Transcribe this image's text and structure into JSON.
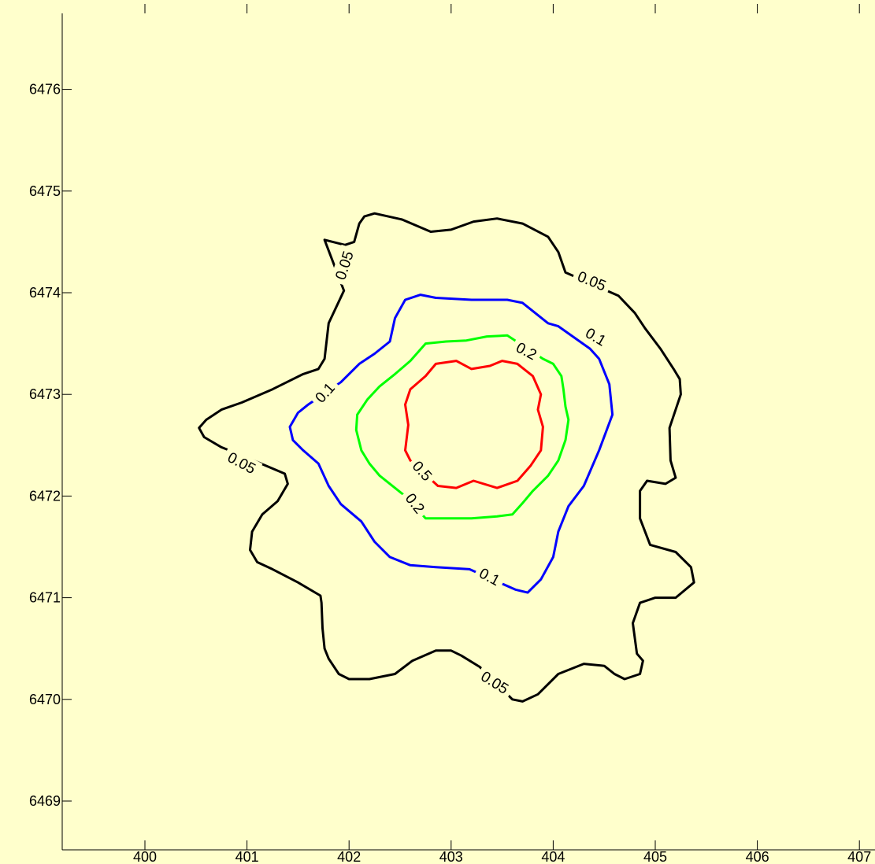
{
  "chart_data": {
    "type": "contour",
    "title": "",
    "xlabel": "",
    "ylabel": "",
    "xlim": [
      399.1,
      407.2
    ],
    "ylim": [
      6468.7,
      6477.15
    ],
    "x_ticks": [
      "400",
      "401",
      "402",
      "403",
      "404",
      "405",
      "406",
      "407"
    ],
    "y_ticks": [
      "6469",
      "6470",
      "6471",
      "6472",
      "6473",
      "6474",
      "6475",
      "6476"
    ],
    "grid": false,
    "colors": {
      "background": "#ffffcc",
      "axis": "#000000"
    },
    "contours": [
      {
        "level": "0.05",
        "color": "#000000",
        "labels": [
          {
            "text": "0.05",
            "x": 401.95,
            "y": 6474.27,
            "angle": -72
          },
          {
            "text": "0.05",
            "x": 404.38,
            "y": 6474.12,
            "angle": 22
          },
          {
            "text": "0.05",
            "x": 400.95,
            "y": 6472.33,
            "angle": 28
          },
          {
            "text": "0.05",
            "x": 403.43,
            "y": 6470.17,
            "angle": 32
          }
        ],
        "points": [
          [
            401.76,
            6474.52
          ],
          [
            401.95,
            6474.02
          ],
          [
            401.95,
            6474.02
          ],
          [
            401.8,
            6473.7
          ],
          [
            401.76,
            6473.35
          ],
          [
            401.7,
            6473.25
          ],
          [
            401.55,
            6473.2
          ],
          [
            401.25,
            6473.05
          ],
          [
            400.95,
            6472.92
          ],
          [
            400.75,
            6472.85
          ],
          [
            400.6,
            6472.75
          ],
          [
            400.53,
            6472.67
          ],
          [
            400.58,
            6472.58
          ],
          [
            400.75,
            6472.48
          ],
          [
            400.9,
            6472.42
          ],
          [
            401.37,
            6472.22
          ],
          [
            401.4,
            6472.12
          ],
          [
            401.3,
            6471.95
          ],
          [
            401.15,
            6471.82
          ],
          [
            401.05,
            6471.65
          ],
          [
            401.03,
            6471.47
          ],
          [
            401.1,
            6471.35
          ],
          [
            401.25,
            6471.28
          ],
          [
            401.5,
            6471.15
          ],
          [
            401.72,
            6471.02
          ],
          [
            401.73,
            6470.95
          ],
          [
            401.74,
            6470.7
          ],
          [
            401.76,
            6470.5
          ],
          [
            401.8,
            6470.4
          ],
          [
            401.9,
            6470.25
          ],
          [
            402.0,
            6470.2
          ],
          [
            402.2,
            6470.2
          ],
          [
            402.45,
            6470.25
          ],
          [
            402.62,
            6470.38
          ],
          [
            402.85,
            6470.48
          ],
          [
            403.0,
            6470.48
          ],
          [
            403.1,
            6470.43
          ],
          [
            403.28,
            6470.32
          ],
          [
            403.6,
            6470.0
          ],
          [
            403.7,
            6469.98
          ],
          [
            403.85,
            6470.05
          ],
          [
            404.05,
            6470.25
          ],
          [
            404.3,
            6470.35
          ],
          [
            404.5,
            6470.33
          ],
          [
            404.6,
            6470.25
          ],
          [
            404.7,
            6470.2
          ],
          [
            404.85,
            6470.25
          ],
          [
            404.88,
            6470.38
          ],
          [
            404.82,
            6470.45
          ],
          [
            404.78,
            6470.75
          ],
          [
            404.85,
            6470.95
          ],
          [
            405.0,
            6471.0
          ],
          [
            405.2,
            6471.0
          ],
          [
            405.38,
            6471.15
          ],
          [
            405.35,
            6471.3
          ],
          [
            405.2,
            6471.45
          ],
          [
            404.95,
            6471.52
          ],
          [
            404.85,
            6471.78
          ],
          [
            404.85,
            6472.05
          ],
          [
            404.92,
            6472.15
          ],
          [
            405.1,
            6472.12
          ],
          [
            405.2,
            6472.18
          ],
          [
            405.15,
            6472.35
          ],
          [
            405.14,
            6472.67
          ],
          [
            405.25,
            6473.0
          ],
          [
            405.24,
            6473.15
          ],
          [
            405.18,
            6473.25
          ],
          [
            405.05,
            6473.45
          ],
          [
            404.9,
            6473.65
          ],
          [
            404.8,
            6473.8
          ],
          [
            404.64,
            6473.97
          ],
          [
            404.12,
            6474.2
          ],
          [
            404.05,
            6474.4
          ],
          [
            403.95,
            6474.55
          ],
          [
            403.7,
            6474.68
          ],
          [
            403.45,
            6474.73
          ],
          [
            403.22,
            6474.7
          ],
          [
            403.0,
            6474.62
          ],
          [
            402.8,
            6474.6
          ],
          [
            402.52,
            6474.72
          ],
          [
            402.25,
            6474.78
          ],
          [
            402.15,
            6474.75
          ],
          [
            402.1,
            6474.68
          ],
          [
            402.05,
            6474.5
          ],
          [
            401.96,
            6474.47
          ]
        ]
      },
      {
        "level": "0.1",
        "color": "#0000ff",
        "labels": [
          {
            "text": "0.1",
            "x": 404.42,
            "y": 6473.57,
            "angle": 30
          },
          {
            "text": "0.1",
            "x": 401.76,
            "y": 6473.02,
            "angle": -48
          },
          {
            "text": "0.1",
            "x": 403.38,
            "y": 6471.21,
            "angle": 28
          }
        ],
        "points": [
          [
            404.36,
            6473.45
          ],
          [
            404.45,
            6473.35
          ],
          [
            404.55,
            6473.1
          ],
          [
            404.58,
            6472.8
          ],
          [
            404.45,
            6472.45
          ],
          [
            404.3,
            6472.1
          ],
          [
            404.15,
            6471.9
          ],
          [
            404.05,
            6471.65
          ],
          [
            404.0,
            6471.4
          ],
          [
            403.88,
            6471.18
          ],
          [
            403.75,
            6471.05
          ],
          [
            403.63,
            6471.08
          ],
          [
            403.18,
            6471.28
          ],
          [
            402.85,
            6471.3
          ],
          [
            402.6,
            6471.32
          ],
          [
            402.4,
            6471.4
          ],
          [
            402.25,
            6471.55
          ],
          [
            402.12,
            6471.75
          ],
          [
            401.92,
            6471.92
          ],
          [
            401.8,
            6472.1
          ],
          [
            401.7,
            6472.32
          ],
          [
            401.55,
            6472.45
          ],
          [
            401.45,
            6472.55
          ],
          [
            401.42,
            6472.68
          ],
          [
            401.5,
            6472.82
          ],
          [
            401.6,
            6472.9
          ],
          [
            401.92,
            6473.12
          ],
          [
            402.1,
            6473.3
          ],
          [
            402.25,
            6473.4
          ],
          [
            402.4,
            6473.52
          ],
          [
            402.45,
            6473.75
          ],
          [
            402.55,
            6473.93
          ],
          [
            402.7,
            6473.98
          ],
          [
            402.85,
            6473.95
          ],
          [
            403.2,
            6473.93
          ],
          [
            403.55,
            6473.93
          ],
          [
            403.7,
            6473.9
          ],
          [
            403.8,
            6473.82
          ],
          [
            403.95,
            6473.7
          ],
          [
            404.05,
            6473.67
          ]
        ]
      },
      {
        "level": "0.2",
        "color": "#00ff00",
        "labels": [
          {
            "text": "0.2",
            "x": 403.74,
            "y": 6473.43,
            "angle": 28
          },
          {
            "text": "0.2",
            "x": 402.65,
            "y": 6471.93,
            "angle": 52
          }
        ],
        "points": [
          [
            403.55,
            6473.58
          ],
          [
            403.35,
            6473.57
          ],
          [
            403.15,
            6473.53
          ],
          [
            402.95,
            6473.52
          ],
          [
            402.75,
            6473.5
          ],
          [
            402.6,
            6473.33
          ],
          [
            402.45,
            6473.2
          ],
          [
            402.3,
            6473.08
          ],
          [
            402.18,
            6472.95
          ],
          [
            402.08,
            6472.8
          ],
          [
            402.07,
            6472.65
          ],
          [
            402.12,
            6472.45
          ],
          [
            402.2,
            6472.32
          ],
          [
            402.3,
            6472.2
          ],
          [
            402.45,
            6472.08
          ],
          [
            402.55,
            6472.0
          ],
          [
            402.75,
            6471.78
          ],
          [
            402.95,
            6471.78
          ],
          [
            403.2,
            6471.78
          ],
          [
            403.45,
            6471.8
          ],
          [
            403.6,
            6471.82
          ],
          [
            403.7,
            6471.93
          ],
          [
            403.8,
            6472.05
          ],
          [
            403.95,
            6472.2
          ],
          [
            404.05,
            6472.35
          ],
          [
            404.12,
            6472.55
          ],
          [
            404.15,
            6472.75
          ],
          [
            404.12,
            6472.88
          ],
          [
            404.1,
            6473.05
          ],
          [
            404.08,
            6473.18
          ],
          [
            404.0,
            6473.3
          ],
          [
            403.9,
            6473.35
          ]
        ]
      },
      {
        "level": "0.5",
        "color": "#ff0000",
        "labels": [
          {
            "text": "0.5",
            "x": 402.72,
            "y": 6472.25,
            "angle": 48
          }
        ],
        "points": [
          [
            402.87,
            6472.1
          ],
          [
            403.05,
            6472.08
          ],
          [
            403.22,
            6472.15
          ],
          [
            403.45,
            6472.08
          ],
          [
            403.65,
            6472.15
          ],
          [
            403.78,
            6472.3
          ],
          [
            403.88,
            6472.45
          ],
          [
            403.9,
            6472.68
          ],
          [
            403.85,
            6472.85
          ],
          [
            403.88,
            6473.0
          ],
          [
            403.8,
            6473.18
          ],
          [
            403.65,
            6473.3
          ],
          [
            403.5,
            6473.33
          ],
          [
            403.38,
            6473.28
          ],
          [
            403.2,
            6473.25
          ],
          [
            403.05,
            6473.33
          ],
          [
            402.85,
            6473.3
          ],
          [
            402.75,
            6473.18
          ],
          [
            402.6,
            6473.05
          ],
          [
            402.55,
            6472.9
          ],
          [
            402.58,
            6472.7
          ],
          [
            402.55,
            6472.45
          ],
          [
            402.6,
            6472.35
          ]
        ]
      }
    ]
  }
}
